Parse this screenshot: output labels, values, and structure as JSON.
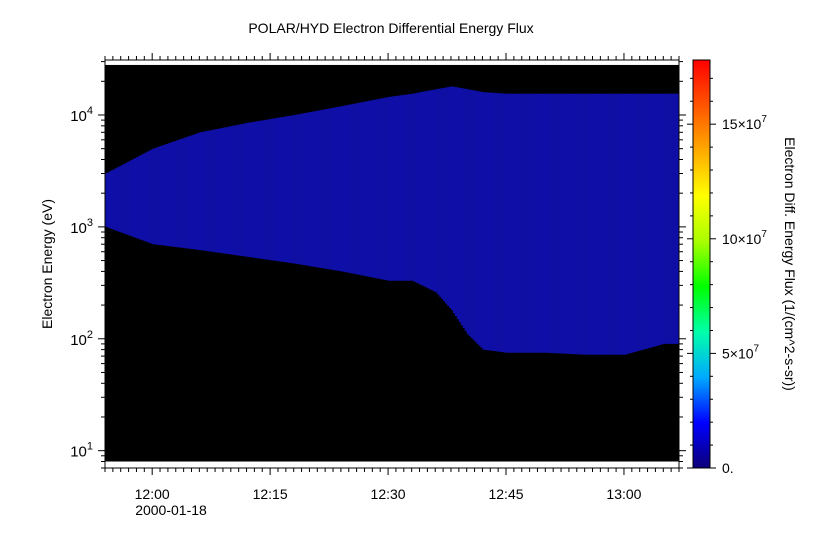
{
  "chart_data": {
    "type": "heatmap",
    "title": "POLAR/HYD  Electron Differential Energy Flux",
    "ylabel": "Electron Energy (eV)",
    "xlabel": "",
    "yscale": "log",
    "ylim": [
      7,
      31000
    ],
    "x_start": "11:54",
    "x_end": "13:07",
    "date_label": "2000-01-18",
    "x_ticks": [
      "12:00",
      "12:15",
      "12:30",
      "12:45",
      "13:00"
    ],
    "x_tick_minutes": [
      0,
      15,
      30,
      45,
      60
    ],
    "y_ticks": [
      {
        "base": "10",
        "exp": "1",
        "value": 10
      },
      {
        "base": "10",
        "exp": "2",
        "value": 100
      },
      {
        "base": "10",
        "exp": "3",
        "value": 1000
      },
      {
        "base": "10",
        "exp": "4",
        "value": 10000
      }
    ],
    "data_energy_range": [
      8,
      28000
    ],
    "colorbar": {
      "label": "Electron Diff. Energy Flux (1/(cm^2-s-sr))",
      "range": [
        0,
        178000000
      ],
      "ticks": [
        {
          "value": 0,
          "base": "0.",
          "exp": ""
        },
        {
          "value": 50000000,
          "base": "5×10",
          "exp": "7"
        },
        {
          "value": 100000000,
          "base": "10×10",
          "exp": "7"
        },
        {
          "value": 150000000,
          "base": "15×10",
          "exp": "7"
        }
      ],
      "colors": [
        "#0c0078",
        "#0000ff",
        "#00aaff",
        "#00ffaa",
        "#00ff00",
        "#aaff00",
        "#ffff00",
        "#ffaa00",
        "#ff5500",
        "#ff0000"
      ]
    },
    "fill_color": "#0f0fa8",
    "background_color": "#000000",
    "flux_band": {
      "minutes": [
        -6,
        0,
        6,
        12,
        18,
        24,
        30,
        33,
        36,
        38,
        40,
        42,
        45,
        50,
        55,
        60,
        65
      ],
      "lower_eV": [
        1000,
        700,
        620,
        540,
        470,
        400,
        330,
        330,
        260,
        180,
        110,
        80,
        75,
        75,
        72,
        72,
        90
      ],
      "upper_eV": [
        3000,
        5000,
        7000,
        8500,
        10000,
        12000,
        14500,
        15500,
        17000,
        18000,
        17000,
        16000,
        15500,
        15500,
        15500,
        15500,
        15500
      ]
    }
  }
}
